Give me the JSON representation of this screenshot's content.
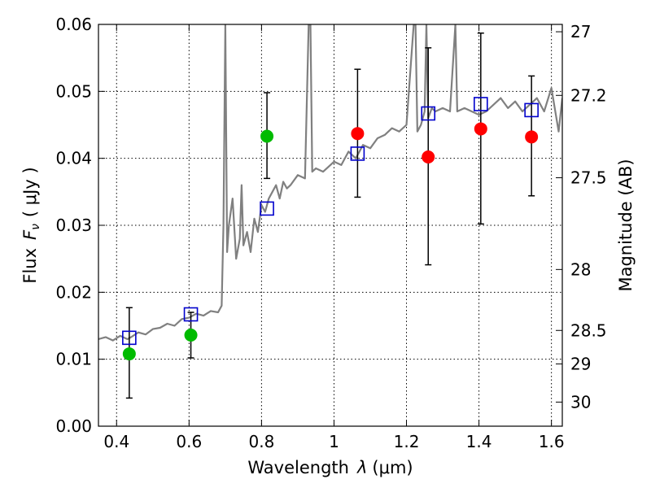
{
  "chart_data": {
    "type": "scatter",
    "xlabel": "Wavelength",
    "xlabel_symbol": "λ",
    "xlabel_unit": "(μm)",
    "ylabel": "Flux",
    "ylabel_symbol": "F",
    "ylabel_symbol_sub": "ν",
    "ylabel_unit": "( μJy )",
    "y2label": "Magnitude (AB)",
    "xlim": [
      0.35,
      1.63
    ],
    "ylim": [
      0.0,
      0.06
    ],
    "grid": true,
    "x_ticks": [
      {
        "value": 0.4,
        "label": "0.4"
      },
      {
        "value": 0.6,
        "label": "0.6"
      },
      {
        "value": 0.8,
        "label": "0.8"
      },
      {
        "value": 1.0,
        "label": "1"
      },
      {
        "value": 1.2,
        "label": "1.2"
      },
      {
        "value": 1.4,
        "label": "1.4"
      },
      {
        "value": 1.6,
        "label": "1.6"
      }
    ],
    "y_ticks": [
      {
        "value": 0.0,
        "label": "0.00"
      },
      {
        "value": 0.01,
        "label": "0.01"
      },
      {
        "value": 0.02,
        "label": "0.02"
      },
      {
        "value": 0.03,
        "label": "0.03"
      },
      {
        "value": 0.04,
        "label": "0.04"
      },
      {
        "value": 0.05,
        "label": "0.05"
      },
      {
        "value": 0.06,
        "label": "0.06"
      }
    ],
    "y2_ticks": [
      {
        "flux": 0.0589,
        "label": "27"
      },
      {
        "flux": 0.0494,
        "label": "27.2"
      },
      {
        "flux": 0.0371,
        "label": "27.5"
      },
      {
        "flux": 0.0234,
        "label": "28"
      },
      {
        "flux": 0.0143,
        "label": "28.5"
      },
      {
        "flux": 0.0093,
        "label": "29"
      },
      {
        "flux": 0.0036,
        "label": "30"
      }
    ],
    "series": [
      {
        "kind": "line",
        "color": "#808080",
        "x": [
          0.35,
          0.37,
          0.39,
          0.41,
          0.43,
          0.44,
          0.46,
          0.48,
          0.5,
          0.52,
          0.54,
          0.56,
          0.58,
          0.6,
          0.62,
          0.64,
          0.66,
          0.68,
          0.69,
          0.695,
          0.7,
          0.705,
          0.71,
          0.72,
          0.73,
          0.74,
          0.745,
          0.75,
          0.76,
          0.77,
          0.78,
          0.79,
          0.8,
          0.81,
          0.82,
          0.83,
          0.84,
          0.85,
          0.86,
          0.87,
          0.88,
          0.9,
          0.92,
          0.93,
          0.935,
          0.94,
          0.95,
          0.97,
          1.0,
          1.02,
          1.04,
          1.06,
          1.08,
          1.1,
          1.12,
          1.14,
          1.16,
          1.18,
          1.2,
          1.22,
          1.225,
          1.23,
          1.24,
          1.25,
          1.255,
          1.26,
          1.27,
          1.28,
          1.3,
          1.32,
          1.335,
          1.34,
          1.36,
          1.38,
          1.4,
          1.42,
          1.44,
          1.46,
          1.48,
          1.5,
          1.52,
          1.54,
          1.56,
          1.58,
          1.6,
          1.62,
          1.63
        ],
        "y": [
          0.013,
          0.0133,
          0.0128,
          0.0135,
          0.013,
          0.0133,
          0.014,
          0.0137,
          0.0145,
          0.0147,
          0.0153,
          0.015,
          0.016,
          0.0162,
          0.0168,
          0.0165,
          0.0172,
          0.017,
          0.018,
          0.03,
          0.06,
          0.026,
          0.03,
          0.034,
          0.025,
          0.028,
          0.036,
          0.027,
          0.029,
          0.026,
          0.031,
          0.029,
          0.033,
          0.032,
          0.034,
          0.035,
          0.036,
          0.034,
          0.0365,
          0.0355,
          0.036,
          0.0375,
          0.037,
          0.06,
          0.06,
          0.038,
          0.0385,
          0.038,
          0.0395,
          0.039,
          0.041,
          0.04,
          0.042,
          0.0415,
          0.043,
          0.0435,
          0.0445,
          0.044,
          0.045,
          0.06,
          0.06,
          0.044,
          0.045,
          0.047,
          0.06,
          0.046,
          0.0475,
          0.047,
          0.0475,
          0.047,
          0.06,
          0.047,
          0.0475,
          0.047,
          0.0465,
          0.047,
          0.048,
          0.049,
          0.0475,
          0.0485,
          0.047,
          0.048,
          0.049,
          0.047,
          0.0505,
          0.044,
          0.049
        ]
      },
      {
        "kind": "open-square",
        "color": "#0000cc",
        "x": [
          0.435,
          0.605,
          0.815,
          1.065,
          1.26,
          1.405,
          1.545
        ],
        "y": [
          0.0132,
          0.0167,
          0.0325,
          0.0407,
          0.0467,
          0.0481,
          0.0472
        ]
      },
      {
        "kind": "filled-circle",
        "color": "#00bb00",
        "x": [
          0.435,
          0.605,
          0.815
        ],
        "y": [
          0.0108,
          0.0136,
          0.0433
        ],
        "yerr_low": [
          0.0042,
          0.0102,
          0.037
        ],
        "yerr_high": [
          0.0177,
          0.017,
          0.0498
        ]
      },
      {
        "kind": "filled-circle",
        "color": "#ff0000",
        "x": [
          1.065,
          1.26,
          1.405,
          1.545
        ],
        "y": [
          0.0437,
          0.0402,
          0.0444,
          0.0432
        ],
        "yerr_low": [
          0.0342,
          0.0241,
          0.0302,
          0.0344
        ],
        "yerr_high": [
          0.0533,
          0.0565,
          0.0587,
          0.0523
        ]
      }
    ]
  }
}
